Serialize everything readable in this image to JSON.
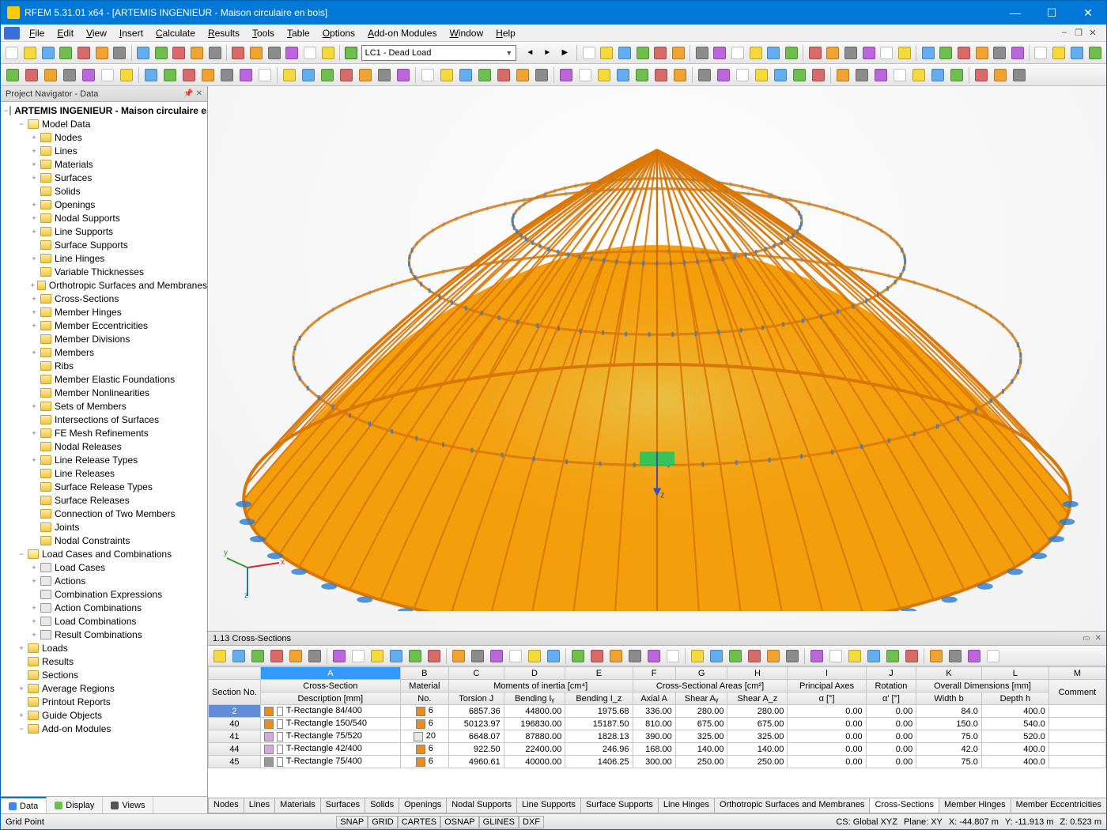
{
  "window": {
    "title": "RFEM 5.31.01 x64 - [ARTEMIS INGENIEUR - Maison circulaire en bois]",
    "menus": [
      "File",
      "Edit",
      "View",
      "Insert",
      "Calculate",
      "Results",
      "Tools",
      "Table",
      "Options",
      "Add-on Modules",
      "Window",
      "Help"
    ]
  },
  "toolbar1": {
    "combo_label": "LC1 - Dead Load",
    "icon_colors": [
      "#ffffff",
      "#f6d93a",
      "#62aef0",
      "#6fbf4e",
      "#d96a6a",
      "#f0a330",
      "#8c8c8c",
      "#bb66dd"
    ]
  },
  "navigator": {
    "title": "Project Navigator - Data",
    "root": "ARTEMIS INGENIEUR - Maison circulaire en bois",
    "model_data_label": "Model Data",
    "model_data": [
      {
        "l": "Nodes",
        "exp": "+"
      },
      {
        "l": "Lines",
        "exp": "+"
      },
      {
        "l": "Materials",
        "exp": "+"
      },
      {
        "l": "Surfaces",
        "exp": "+"
      },
      {
        "l": "Solids",
        "exp": ""
      },
      {
        "l": "Openings",
        "exp": "+"
      },
      {
        "l": "Nodal Supports",
        "exp": "+"
      },
      {
        "l": "Line Supports",
        "exp": "+"
      },
      {
        "l": "Surface Supports",
        "exp": ""
      },
      {
        "l": "Line Hinges",
        "exp": "+"
      },
      {
        "l": "Variable Thicknesses",
        "exp": ""
      },
      {
        "l": "Orthotropic Surfaces and Membranes",
        "exp": "+"
      },
      {
        "l": "Cross-Sections",
        "exp": "+"
      },
      {
        "l": "Member Hinges",
        "exp": "+"
      },
      {
        "l": "Member Eccentricities",
        "exp": "+"
      },
      {
        "l": "Member Divisions",
        "exp": ""
      },
      {
        "l": "Members",
        "exp": "+"
      },
      {
        "l": "Ribs",
        "exp": ""
      },
      {
        "l": "Member Elastic Foundations",
        "exp": ""
      },
      {
        "l": "Member Nonlinearities",
        "exp": ""
      },
      {
        "l": "Sets of Members",
        "exp": "+"
      },
      {
        "l": "Intersections of Surfaces",
        "exp": ""
      },
      {
        "l": "FE Mesh Refinements",
        "exp": "+"
      },
      {
        "l": "Nodal Releases",
        "exp": ""
      },
      {
        "l": "Line Release Types",
        "exp": "+"
      },
      {
        "l": "Line Releases",
        "exp": ""
      },
      {
        "l": "Surface Release Types",
        "exp": ""
      },
      {
        "l": "Surface Releases",
        "exp": ""
      },
      {
        "l": "Connection of Two Members",
        "exp": ""
      },
      {
        "l": "Joints",
        "exp": ""
      },
      {
        "l": "Nodal Constraints",
        "exp": ""
      }
    ],
    "load_cases_label": "Load Cases and Combinations",
    "load_cases": [
      {
        "l": "Load Cases",
        "exp": "+",
        "ico": "special"
      },
      {
        "l": "Actions",
        "exp": "+",
        "ico": "special"
      },
      {
        "l": "Combination Expressions",
        "exp": "",
        "ico": "special"
      },
      {
        "l": "Action Combinations",
        "exp": "+",
        "ico": "special"
      },
      {
        "l": "Load Combinations",
        "exp": "+",
        "ico": "special"
      },
      {
        "l": "Result Combinations",
        "exp": "+",
        "ico": "special"
      }
    ],
    "rest": [
      {
        "l": "Loads",
        "exp": "+"
      },
      {
        "l": "Results",
        "exp": ""
      },
      {
        "l": "Sections",
        "exp": ""
      },
      {
        "l": "Average Regions",
        "exp": "+"
      },
      {
        "l": "Printout Reports",
        "exp": ""
      },
      {
        "l": "Guide Objects",
        "exp": "+"
      },
      {
        "l": "Add-on Modules",
        "exp": "−"
      }
    ],
    "tabs": [
      {
        "l": "Data",
        "c": "#3a86ff"
      },
      {
        "l": "Display",
        "c": "#6fbf4e"
      },
      {
        "l": "Views",
        "c": "#555"
      }
    ]
  },
  "viewport": {
    "dome": {
      "base_color": "#f59e0b",
      "highlight_color": "#fbbf24",
      "inner_color": "#e8c34a",
      "rib_color": "#d97706",
      "support_color": "#2a7ad1",
      "marker_color": "#2a7ad1",
      "origin_marker": "#22c55e",
      "axis_x": "#d62728",
      "axis_y": "#2ca02c",
      "axis_z": "#1f77b4",
      "num_meridians": 60,
      "num_parallels": 3
    }
  },
  "table": {
    "title": "1.13 Cross-Sections",
    "col_letters": [
      "A",
      "B",
      "C",
      "D",
      "E",
      "F",
      "G",
      "H",
      "I",
      "J",
      "K",
      "L",
      "M"
    ],
    "group_headers": [
      {
        "l": "Section No.",
        "span": 1,
        "rows": 2
      },
      {
        "l": "Cross-Section",
        "span": 1
      },
      {
        "l": "Material",
        "span": 1
      },
      {
        "l": "Moments of inertia [cm⁴]",
        "span": 3
      },
      {
        "l": "Cross-Sectional Areas [cm²]",
        "span": 3
      },
      {
        "l": "Principal Axes",
        "span": 1
      },
      {
        "l": "Rotation",
        "span": 1
      },
      {
        "l": "Overall Dimensions [mm]",
        "span": 2
      },
      {
        "l": "Comment",
        "span": 1,
        "rows": 2
      }
    ],
    "sub_headers": [
      "Description [mm]",
      "No.",
      "Torsion J",
      "Bending Iᵧ",
      "Bending I_z",
      "Axial A",
      "Shear Aᵧ",
      "Shear A_z",
      "α [°]",
      "α' [°]",
      "Width b",
      "Depth h"
    ],
    "rows": [
      {
        "no": "2",
        "sw": "#e78c1f",
        "desc": "T-Rectangle 84/400",
        "msw": "#e78c1f",
        "mat": "6",
        "j": "6857.36",
        "iy": "44800.00",
        "iz": "1975.68",
        "a": "336.00",
        "ay": "280.00",
        "az": "280.00",
        "pa": "0.00",
        "rot": "0.00",
        "w": "84.0",
        "h": "400.0",
        "c": "",
        "sel": true
      },
      {
        "no": "40",
        "sw": "#e78c1f",
        "desc": "T-Rectangle 150/540",
        "msw": "#e78c1f",
        "mat": "6",
        "j": "50123.97",
        "iy": "196830.00",
        "iz": "15187.50",
        "a": "810.00",
        "ay": "675.00",
        "az": "675.00",
        "pa": "0.00",
        "rot": "0.00",
        "w": "150.0",
        "h": "540.0",
        "c": ""
      },
      {
        "no": "41",
        "sw": "#d8a7e0",
        "desc": "T-Rectangle 75/520",
        "msw": "#e6e6e6",
        "mat": "20",
        "j": "6648.07",
        "iy": "87880.00",
        "iz": "1828.13",
        "a": "390.00",
        "ay": "325.00",
        "az": "325.00",
        "pa": "0.00",
        "rot": "0.00",
        "w": "75.0",
        "h": "520.0",
        "c": ""
      },
      {
        "no": "44",
        "sw": "#d8a7e0",
        "desc": "T-Rectangle 42/400",
        "msw": "#e78c1f",
        "mat": "6",
        "j": "922.50",
        "iy": "22400.00",
        "iz": "246.96",
        "a": "168.00",
        "ay": "140.00",
        "az": "140.00",
        "pa": "0.00",
        "rot": "0.00",
        "w": "42.0",
        "h": "400.0",
        "c": ""
      },
      {
        "no": "45",
        "sw": "#999999",
        "desc": "T-Rectangle 75/400",
        "msw": "#e78c1f",
        "mat": "6",
        "j": "4960.61",
        "iy": "40000.00",
        "iz": "1406.25",
        "a": "300.00",
        "ay": "250.00",
        "az": "250.00",
        "pa": "0.00",
        "rot": "0.00",
        "w": "75.0",
        "h": "400.0",
        "c": ""
      }
    ],
    "bottom_tabs": [
      "Nodes",
      "Lines",
      "Materials",
      "Surfaces",
      "Solids",
      "Openings",
      "Nodal Supports",
      "Line Supports",
      "Surface Supports",
      "Line Hinges",
      "Orthotropic Surfaces and Membranes",
      "Cross-Sections",
      "Member Hinges",
      "Member Eccentricities"
    ],
    "active_bottom_tab": "Cross-Sections"
  },
  "status": {
    "left": "Grid Point",
    "toggles": [
      "SNAP",
      "GRID",
      "CARTES",
      "OSNAP",
      "GLINES",
      "DXF"
    ],
    "cs": "CS: Global XYZ",
    "plane": "Plane: XY",
    "x": "X: -44.807 m",
    "y": "Y: -11.913 m",
    "z": "Z: 0.523 m"
  }
}
